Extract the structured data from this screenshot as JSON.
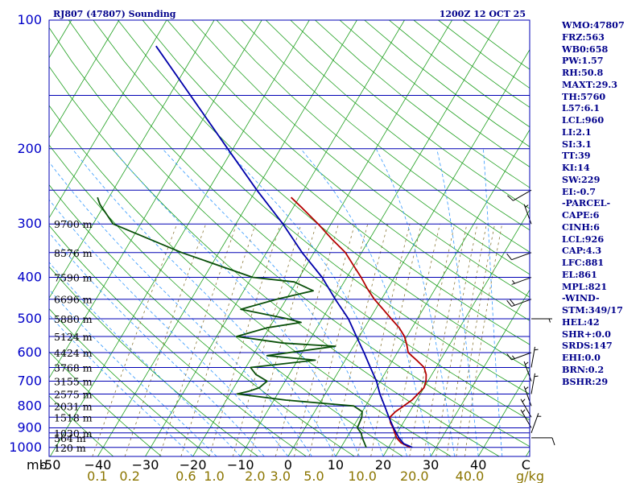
{
  "chart_data": {
    "type": "skew-t",
    "title": "RJ807 (47807) Sounding",
    "valid_time": "1200Z 12 OCT 25",
    "pressure_labels": [
      {
        "p": 100,
        "label": "100"
      },
      {
        "p": 200,
        "label": "200"
      },
      {
        "p": 300,
        "label": "300"
      },
      {
        "p": 400,
        "label": "400"
      },
      {
        "p": 500,
        "label": "500"
      },
      {
        "p": 600,
        "label": "600"
      },
      {
        "p": 700,
        "label": "700"
      },
      {
        "p": 800,
        "label": "800"
      },
      {
        "p": 900,
        "label": "900"
      },
      {
        "p": 1000,
        "label": "1000"
      }
    ],
    "isobars": [
      100,
      150,
      200,
      250,
      300,
      350,
      400,
      450,
      500,
      550,
      600,
      650,
      700,
      750,
      800,
      850,
      900,
      925,
      950,
      1000
    ],
    "y_unit": "mb",
    "temp_labels": [
      {
        "t": -50,
        "label": "-50"
      },
      {
        "t": -40,
        "label": "−40"
      },
      {
        "t": -30,
        "label": "−30"
      },
      {
        "t": -20,
        "label": "−20"
      },
      {
        "t": -10,
        "label": "−10"
      },
      {
        "t": 0,
        "label": "0"
      },
      {
        "t": 10,
        "label": "10"
      },
      {
        "t": 20,
        "label": "20"
      },
      {
        "t": 30,
        "label": "30"
      },
      {
        "t": 40,
        "label": "40"
      },
      {
        "t": 50,
        "label": "C"
      }
    ],
    "mixing_ratio_labels": [
      {
        "w": 0.1,
        "label": "0.1"
      },
      {
        "w": 0.2,
        "label": "0.2"
      },
      {
        "w": 0.6,
        "label": "0.6"
      },
      {
        "w": 1.0,
        "label": "1.0"
      },
      {
        "w": 2.0,
        "label": "2.0"
      },
      {
        "w": 3.0,
        "label": "3.0"
      },
      {
        "w": 5.0,
        "label": "5.0"
      },
      {
        "w": 10.0,
        "label": "10.0"
      },
      {
        "w": 20.0,
        "label": "20.0"
      },
      {
        "w": 40.0,
        "label": "40.0"
      }
    ],
    "mixing_ratio_unit": "g/kg",
    "height_labels": [
      {
        "p": 1000,
        "label": "120 m"
      },
      {
        "p": 950,
        "label": "564 m"
      },
      {
        "p": 925,
        "label": "1030 m"
      },
      {
        "p": 850,
        "label": "1518 m"
      },
      {
        "p": 800,
        "label": "2031 m"
      },
      {
        "p": 750,
        "label": "2575 m"
      },
      {
        "p": 700,
        "label": "3155 m"
      },
      {
        "p": 650,
        "label": "3768 m"
      },
      {
        "p": 600,
        "label": "4424 m"
      },
      {
        "p": 550,
        "label": "5124 m"
      },
      {
        "p": 500,
        "label": "5880 m"
      },
      {
        "p": 450,
        "label": "6696 m"
      },
      {
        "p": 400,
        "label": "7590 m"
      },
      {
        "p": 350,
        "label": "8576 m"
      },
      {
        "p": 300,
        "label": "9700 m"
      }
    ],
    "series": [
      {
        "name": "temperature",
        "color": "#b40000",
        "points": [
          {
            "p": 1000,
            "t": 24.5
          },
          {
            "p": 975,
            "t": 22.0
          },
          {
            "p": 950,
            "t": 20.5
          },
          {
            "p": 925,
            "t": 19.5
          },
          {
            "p": 900,
            "t": 18.5
          },
          {
            "p": 875,
            "t": 17.3
          },
          {
            "p": 850,
            "t": 16.5
          },
          {
            "p": 825,
            "t": 17.0
          },
          {
            "p": 800,
            "t": 18.0
          },
          {
            "p": 775,
            "t": 19.0
          },
          {
            "p": 750,
            "t": 19.5
          },
          {
            "p": 725,
            "t": 20.0
          },
          {
            "p": 700,
            "t": 19.6
          },
          {
            "p": 675,
            "t": 18.8
          },
          {
            "p": 650,
            "t": 17.5
          },
          {
            "p": 625,
            "t": 15.0
          },
          {
            "p": 600,
            "t": 12.3
          },
          {
            "p": 575,
            "t": 11.0
          },
          {
            "p": 550,
            "t": 9.5
          },
          {
            "p": 525,
            "t": 7.3
          },
          {
            "p": 500,
            "t": 4.5
          },
          {
            "p": 475,
            "t": 1.6
          },
          {
            "p": 450,
            "t": -1.5
          },
          {
            "p": 425,
            "t": -4.3
          },
          {
            "p": 400,
            "t": -7.0
          },
          {
            "p": 375,
            "t": -10.1
          },
          {
            "p": 350,
            "t": -13.4
          },
          {
            "p": 325,
            "t": -18.0
          },
          {
            "p": 300,
            "t": -22.7
          },
          {
            "p": 275,
            "t": -28.1
          },
          {
            "p": 260,
            "t": -31.7
          }
        ]
      },
      {
        "name": "dewpoint",
        "color": "#0a500a",
        "points": [
          {
            "p": 1000,
            "t": 15.3
          },
          {
            "p": 950,
            "t": 13.3
          },
          {
            "p": 925,
            "t": 12.4
          },
          {
            "p": 900,
            "t": 11.0
          },
          {
            "p": 850,
            "t": 10.6
          },
          {
            "p": 825,
            "t": 10.0
          },
          {
            "p": 800,
            "t": 7.5
          },
          {
            "p": 775,
            "t": -7.5
          },
          {
            "p": 750,
            "t": -18.5
          },
          {
            "p": 740,
            "t": -16.5
          },
          {
            "p": 725,
            "t": -14.6
          },
          {
            "p": 700,
            "t": -13.8
          },
          {
            "p": 675,
            "t": -17.0
          },
          {
            "p": 650,
            "t": -19.0
          },
          {
            "p": 625,
            "t": -6.3
          },
          {
            "p": 610,
            "t": -17.0
          },
          {
            "p": 580,
            "t": -3.8
          },
          {
            "p": 570,
            "t": -15.2
          },
          {
            "p": 550,
            "t": -25.8
          },
          {
            "p": 525,
            "t": -20.5
          },
          {
            "p": 510,
            "t": -14.0
          },
          {
            "p": 500,
            "t": -17.3
          },
          {
            "p": 475,
            "t": -28.3
          },
          {
            "p": 450,
            "t": -22.0
          },
          {
            "p": 430,
            "t": -15.4
          },
          {
            "p": 410,
            "t": -20.5
          },
          {
            "p": 400,
            "t": -29.8
          },
          {
            "p": 350,
            "t": -47.8
          },
          {
            "p": 300,
            "t": -65.8
          },
          {
            "p": 270,
            "t": -71.0
          },
          {
            "p": 260,
            "t": -72.4
          }
        ]
      },
      {
        "name": "parcel",
        "color": "#0000aa",
        "points": [
          {
            "p": 1000,
            "t": 25.0
          },
          {
            "p": 980,
            "t": 22.7
          },
          {
            "p": 950,
            "t": 21.0
          },
          {
            "p": 900,
            "t": 18.6
          },
          {
            "p": 850,
            "t": 16.3
          },
          {
            "p": 800,
            "t": 14.0
          },
          {
            "p": 750,
            "t": 11.5
          },
          {
            "p": 700,
            "t": 9.2
          },
          {
            "p": 650,
            "t": 6.2
          },
          {
            "p": 600,
            "t": 3.0
          },
          {
            "p": 550,
            "t": -0.6
          },
          {
            "p": 500,
            "t": -4.5
          },
          {
            "p": 450,
            "t": -9.7
          },
          {
            "p": 400,
            "t": -15.2
          },
          {
            "p": 350,
            "t": -22.5
          },
          {
            "p": 300,
            "t": -30.1
          },
          {
            "p": 250,
            "t": -39.8
          },
          {
            "p": 200,
            "t": -51.1
          },
          {
            "p": 150,
            "t": -65.6
          },
          {
            "p": 115,
            "t": -79.0
          }
        ]
      }
    ],
    "winds": [
      {
        "p": 950,
        "dir": 90,
        "kt": 10
      },
      {
        "p": 925,
        "dir": 20,
        "kt": 5
      },
      {
        "p": 900,
        "dir": 330,
        "kt": 5
      },
      {
        "p": 850,
        "dir": 330,
        "kt": 5
      },
      {
        "p": 800,
        "dir": 340,
        "kt": 5
      },
      {
        "p": 750,
        "dir": 10,
        "kt": 5
      },
      {
        "p": 700,
        "dir": 340,
        "kt": 5
      },
      {
        "p": 650,
        "dir": 10,
        "kt": 5
      },
      {
        "p": 600,
        "dir": 250,
        "kt": 15
      },
      {
        "p": 500,
        "dir": 90,
        "kt": 5
      },
      {
        "p": 450,
        "dir": 250,
        "kt": 20
      },
      {
        "p": 400,
        "dir": 250,
        "kt": 5
      },
      {
        "p": 350,
        "dir": 250,
        "kt": 10
      },
      {
        "p": 300,
        "dir": 340,
        "kt": 5
      },
      {
        "p": 250,
        "dir": 240,
        "kt": 10
      }
    ],
    "colors": {
      "isobar": "#0000b4",
      "isotherm": "#20a020",
      "dry_adiabat": "#20a020",
      "moist_adiabat": "#3399ff",
      "mixing_ratio": "#8b7a3a",
      "border": "#0000b4"
    }
  },
  "indices": [
    "WMO:47807",
    "FRZ:563",
    "WB0:658",
    "PW:1.57",
    "RH:50.8",
    "MAXT:29.3",
    "TH:5760",
    "L57:6.1",
    "LCL:960",
    "LI:2.1",
    "SI:3.1",
    "TT:39",
    "KI:14",
    "SW:229",
    "EI:-0.7",
    "-PARCEL-",
    "CAPE:6",
    "CINH:6",
    "LCL:926",
    "CAP:4.3",
    "LFC:881",
    "EL:861",
    "MPL:821",
    "-WIND-",
    "STM:349/17",
    "HEL:42",
    "SHR+:0.0",
    "SRDS:147",
    "EHI:0.0",
    "BRN:0.2",
    "BSHR:29"
  ]
}
